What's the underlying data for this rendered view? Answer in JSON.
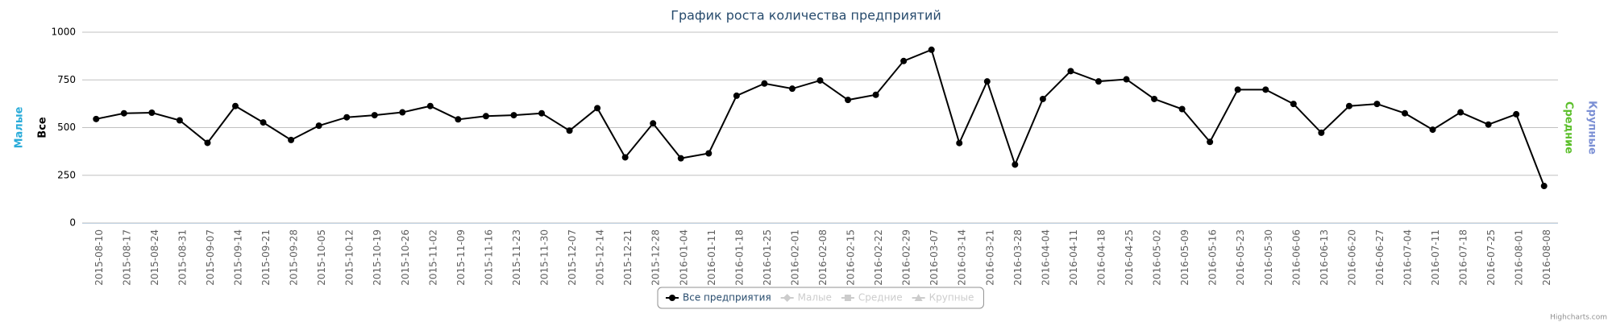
{
  "chart_data": {
    "type": "line",
    "title": "График роста количества предприятий",
    "credit": "Highcharts.com",
    "y_axes": [
      {
        "title": "Малые",
        "color": "#29abd9",
        "side": "left"
      },
      {
        "title": "Все",
        "color": "#000000",
        "side": "left"
      },
      {
        "title": "Средние",
        "color": "#5bbf2a",
        "side": "right"
      },
      {
        "title": "Крупные",
        "color": "#7b8fd4",
        "side": "right"
      }
    ],
    "categories": [
      "2015-08-10",
      "2015-08-17",
      "2015-08-24",
      "2015-08-31",
      "2015-09-07",
      "2015-09-14",
      "2015-09-21",
      "2015-09-28",
      "2015-10-05",
      "2015-10-12",
      "2015-10-19",
      "2015-10-26",
      "2015-11-02",
      "2015-11-09",
      "2015-11-16",
      "2015-11-23",
      "2015-11-30",
      "2015-12-07",
      "2015-12-14",
      "2015-12-21",
      "2015-12-28",
      "2016-01-04",
      "2016-01-11",
      "2016-01-18",
      "2016-01-25",
      "2016-02-01",
      "2016-02-08",
      "2016-02-15",
      "2016-02-22",
      "2016-02-29",
      "2016-03-07",
      "2016-03-14",
      "2016-03-21",
      "2016-03-28",
      "2016-04-04",
      "2016-04-11",
      "2016-04-18",
      "2016-04-25",
      "2016-05-02",
      "2016-05-09",
      "2016-05-16",
      "2016-05-23",
      "2016-05-30",
      "2016-06-06",
      "2016-06-13",
      "2016-06-20",
      "2016-06-27",
      "2016-07-04",
      "2016-07-11",
      "2016-07-18",
      "2016-07-25",
      "2016-08-01",
      "2016-08-08"
    ],
    "series": [
      {
        "name": "Все предприятия",
        "color": "#000000",
        "marker": "circle",
        "visible": true,
        "values": [
          545,
          575,
          578,
          538,
          420,
          613,
          527,
          435,
          510,
          554,
          565,
          580,
          613,
          543,
          560,
          565,
          575,
          484,
          602,
          344,
          522,
          339,
          365,
          667,
          731,
          704,
          747,
          645,
          672,
          849,
          908,
          419,
          742,
          306,
          650,
          796,
          742,
          753,
          650,
          597,
          425,
          699,
          699,
          624,
          473,
          613,
          624,
          575,
          489,
          580,
          516,
          570,
          194
        ]
      },
      {
        "name": "Малые",
        "color": "#29abd9",
        "marker": "diamond",
        "visible": false
      },
      {
        "name": "Средние",
        "color": "#5bbf2a",
        "marker": "square",
        "visible": false
      },
      {
        "name": "Крупные",
        "color": "#7b8fd4",
        "marker": "triangle",
        "visible": false
      }
    ],
    "ylim": [
      0,
      1000
    ],
    "yticks": [
      0,
      250,
      500,
      750,
      1000
    ],
    "grid": true
  }
}
